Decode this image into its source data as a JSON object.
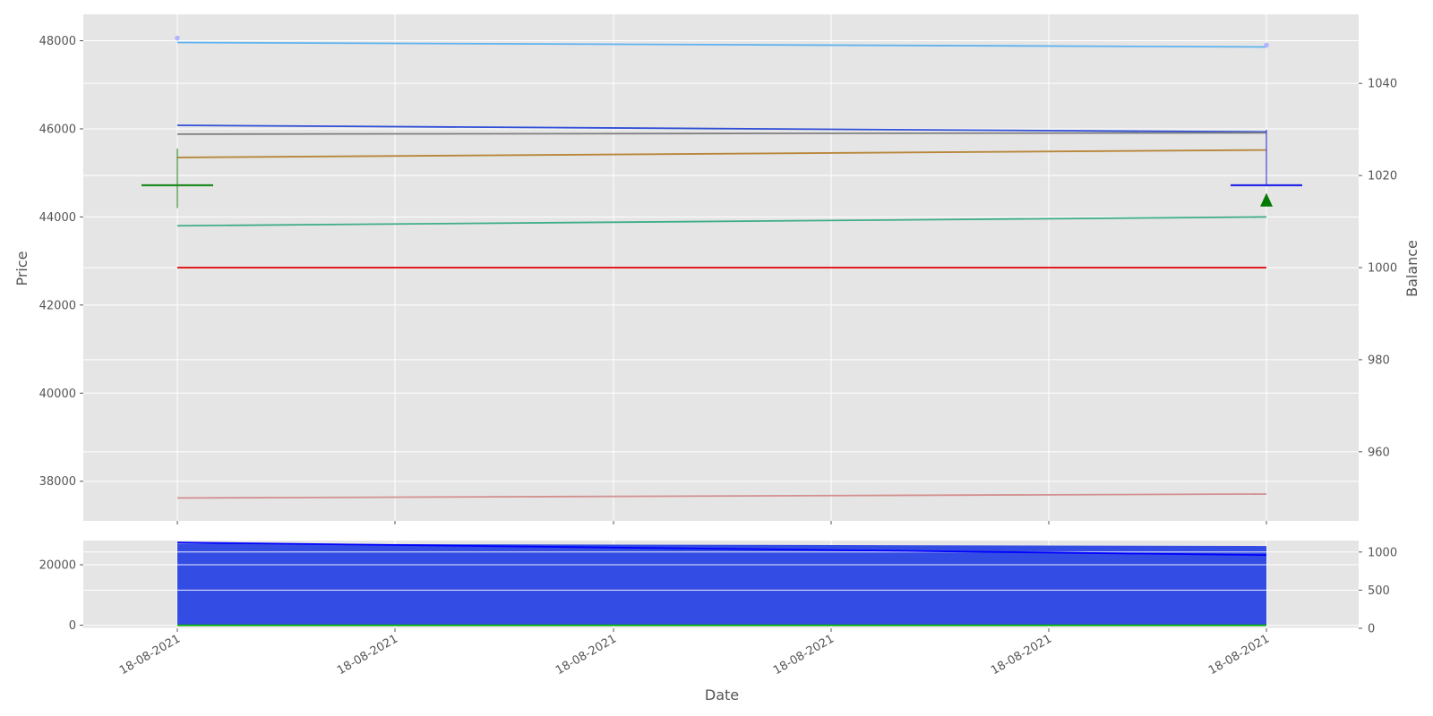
{
  "chart_data": [
    {
      "type": "line",
      "panel": "price",
      "xlabel": "",
      "ylabel": "Price",
      "y2label": "Balance",
      "x_points": [
        "18-08-2021 start",
        "18-08-2021 end"
      ],
      "ylim": [
        37100,
        48600
      ],
      "y2lim": [
        945,
        1055
      ],
      "yticks": [
        38000,
        40000,
        42000,
        44000,
        46000,
        48000
      ],
      "y2ticks": [
        960,
        980,
        1000,
        1020,
        1040
      ],
      "series": [
        {
          "name": "light blue line",
          "color": "#5fb3f0",
          "values": [
            47960,
            47860
          ]
        },
        {
          "name": "dark blue line",
          "color": "#2f4fd8",
          "values": [
            46080,
            45930
          ]
        },
        {
          "name": "gray line",
          "color": "#808080",
          "values": [
            45880,
            45910
          ]
        },
        {
          "name": "brown line",
          "color": "#b8863a",
          "values": [
            45350,
            45520
          ]
        },
        {
          "name": "teal line",
          "color": "#3fae86",
          "values": [
            43800,
            44000
          ]
        },
        {
          "name": "pink line",
          "color": "#d49090",
          "values": [
            37620,
            37710
          ]
        }
      ],
      "balance_series": {
        "name": "balance",
        "color": "#e00000",
        "values": [
          1000,
          1000
        ]
      },
      "markers": [
        {
          "name": "start dot",
          "color": "#b3b3ff",
          "x_index": 0,
          "value": 48060
        },
        {
          "name": "end dot",
          "color": "#b3b3ff",
          "x_index": 1,
          "value": 47900
        }
      ],
      "candles": [
        {
          "name": "green candle",
          "color": "#228b22",
          "x_index": 0,
          "high": 45550,
          "low": 44200,
          "level": 44720
        },
        {
          "name": "blue candle",
          "color": "#2828e8",
          "x_index": 1,
          "high": 45980,
          "low": 44700,
          "level": 44720
        }
      ],
      "buy_marker": {
        "color": "#007a00",
        "x_index": 1,
        "value": 44380
      }
    },
    {
      "type": "area",
      "panel": "volume",
      "xlabel": "Date",
      "ylim": [
        -1000,
        28000
      ],
      "y2lim": [
        0,
        1150
      ],
      "yticks": [
        0,
        20000
      ],
      "y2ticks": [
        0,
        500,
        1000
      ],
      "x_points": [
        "18-08-2021 start",
        "18-08-2021 end"
      ],
      "area_series": {
        "name": "volume",
        "color": "#334ce3",
        "values": [
          27000,
          26200
        ]
      },
      "line_series": {
        "name": "balance",
        "color": "#0000ff",
        "values": [
          1125,
          960
        ]
      },
      "base_line": {
        "name": "zero line",
        "color": "#00b000",
        "values": [
          0,
          0
        ]
      },
      "xtick_labels": [
        "18-08-2021",
        "18-08-2021",
        "18-08-2021",
        "18-08-2021",
        "18-08-2021",
        "18-08-2021"
      ]
    }
  ]
}
